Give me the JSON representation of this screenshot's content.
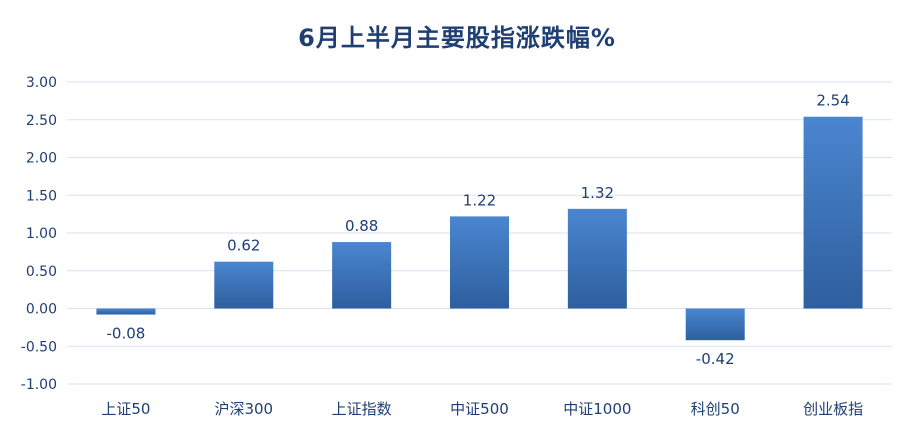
{
  "chart_data": {
    "type": "bar",
    "title": "6月上半月主要股指涨跌幅%",
    "categories": [
      "上证50",
      "沪深300",
      "上证指数",
      "中证500",
      "中证1000",
      "科创50",
      "创业板指"
    ],
    "values": [
      -0.08,
      0.62,
      0.88,
      1.22,
      1.32,
      -0.42,
      2.54
    ],
    "value_labels": [
      "-0.08",
      "0.62",
      "0.88",
      "1.22",
      "1.32",
      "-0.42",
      "2.54"
    ],
    "ylim": [
      -1.0,
      3.0
    ],
    "yticks": [
      "3.00",
      "2.50",
      "2.00",
      "1.50",
      "1.00",
      "0.50",
      "0.00",
      "-0.50",
      "-1.00"
    ],
    "ytick_values": [
      3.0,
      2.5,
      2.0,
      1.5,
      1.0,
      0.5,
      0.0,
      -0.5,
      -1.0
    ],
    "grid": true,
    "legend": "none",
    "colors": {
      "bar_top": "#4a86d0",
      "bar_bottom": "#2e5f9e",
      "text": "#1f3f73",
      "grid": "#d9e1f2"
    }
  }
}
